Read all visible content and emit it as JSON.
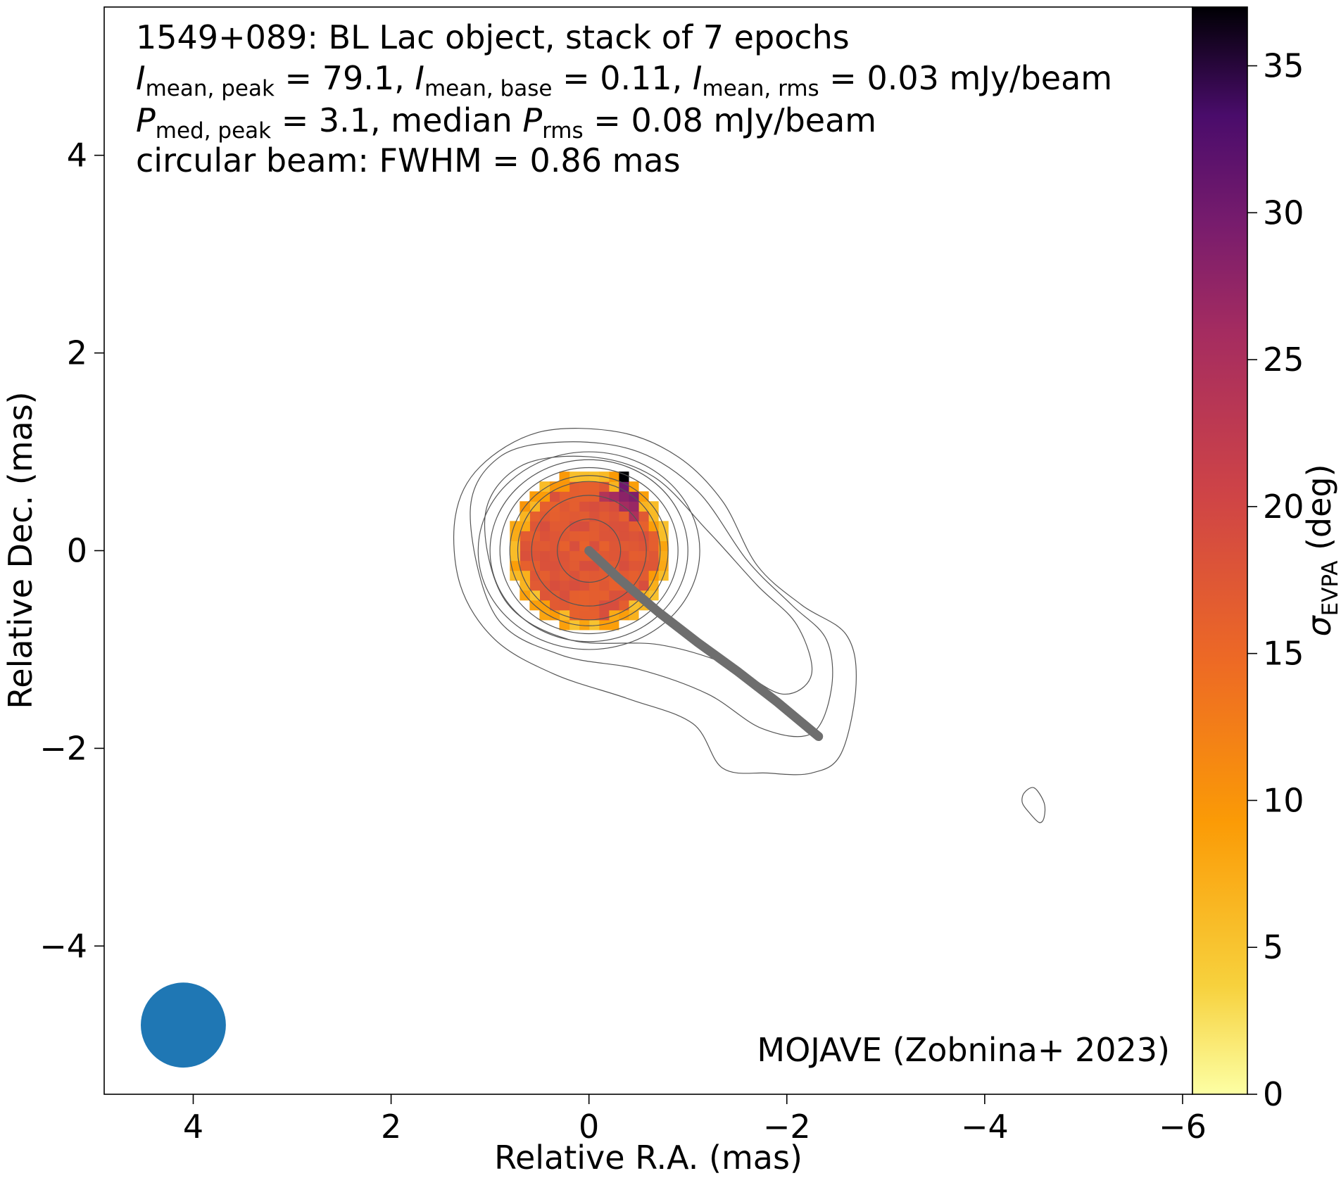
{
  "chart_data": {
    "type": "heatmap",
    "header_lines": {
      "line1": "1549+089: BL Lac object, stack of 7 epochs",
      "line2": {
        "i_sym": "I",
        "sub_peak": "mean, peak",
        "peak_val": " = 79.1, ",
        "sub_base": "mean, base",
        "base_val": " = 0.11, ",
        "sub_rms": "mean, rms",
        "rms_val": " = 0.03 mJy/beam"
      },
      "line3": {
        "p_sym": "P",
        "sub_med": "med, peak",
        "med_val": " = 3.1, median ",
        "sub_prms": "rms",
        "prms_val": " = 0.08 mJy/beam"
      },
      "line4": "circular beam: FWHM = 0.86 mas"
    },
    "credit": "MOJAVE (Zobnina+ 2023)",
    "xlabel": "Relative R.A. (mas)",
    "ylabel": "Relative Dec. (mas)",
    "xlim": [
      4.9,
      -6.1
    ],
    "ylim": [
      -5.5,
      5.5
    ],
    "xticks": [
      4,
      2,
      0,
      -2,
      -4,
      -6
    ],
    "yticks": [
      4,
      2,
      0,
      -2,
      -4
    ],
    "colorbar": {
      "label_sym": "σ",
      "label_sub": "EVPA",
      "label_unit": " (deg)",
      "range": [
        0,
        37
      ],
      "ticks": [
        0,
        5,
        10,
        15,
        20,
        25,
        30,
        35
      ],
      "colormap": "inferno_r"
    },
    "beam": {
      "x": 4.1,
      "y": -4.8,
      "fwhm": 0.86,
      "color": "#1f77b4"
    },
    "jet_ridge": {
      "color": "#6e6e6e",
      "points": [
        [
          0,
          0
        ],
        [
          -0.3,
          -0.28
        ],
        [
          -0.7,
          -0.62
        ],
        [
          -1.1,
          -0.93
        ],
        [
          -1.5,
          -1.22
        ],
        [
          -1.9,
          -1.53
        ],
        [
          -2.32,
          -1.88
        ]
      ]
    },
    "polarization_region": {
      "center": [
        0,
        0
      ],
      "radius": 0.82,
      "pixel_size": 0.1,
      "core_sigma_deg": 17.5,
      "edge_sigma_deg": 5,
      "notable_pixels": [
        {
          "x": -0.35,
          "y": 0.75,
          "sigma": 37
        },
        {
          "x": -0.35,
          "y": 0.65,
          "sigma": 30
        },
        {
          "x": -0.45,
          "y": 0.55,
          "sigma": 29
        },
        {
          "x": -0.35,
          "y": 0.55,
          "sigma": 28
        },
        {
          "x": -0.25,
          "y": 0.55,
          "sigma": 26
        },
        {
          "x": -0.45,
          "y": 0.45,
          "sigma": 27
        },
        {
          "x": -0.35,
          "y": 0.45,
          "sigma": 26
        },
        {
          "x": -0.45,
          "y": 0.35,
          "sigma": 25
        },
        {
          "x": -0.15,
          "y": 0.55,
          "sigma": 24
        }
      ]
    },
    "contours": {
      "main": [
        {
          "rx": 0.32,
          "ry": 0.32
        },
        {
          "rx": 0.58,
          "ry": 0.56
        },
        {
          "rx": 0.72,
          "ry": 0.7
        },
        {
          "rx": 0.8,
          "ry": 0.76
        },
        {
          "rx": 0.9,
          "ry": 0.84
        },
        {
          "rx": 1.0,
          "ry": 0.92
        },
        {
          "rx": 1.12,
          "ry": 1.0
        }
      ],
      "extended": [
        [
          [
            1.35,
            0.35
          ],
          [
            1.1,
            0.85
          ],
          [
            0.5,
            1.2
          ],
          [
            -0.3,
            1.2
          ],
          [
            -0.9,
            0.95
          ],
          [
            -1.35,
            0.5
          ],
          [
            -1.7,
            -0.15
          ],
          [
            -2.15,
            -0.55
          ],
          [
            -2.6,
            -0.85
          ],
          [
            -2.7,
            -1.35
          ],
          [
            -2.55,
            -2.05
          ],
          [
            -2.25,
            -2.25
          ],
          [
            -1.8,
            -2.25
          ],
          [
            -1.35,
            -2.2
          ],
          [
            -1.05,
            -1.75
          ],
          [
            -0.4,
            -1.5
          ],
          [
            0.35,
            -1.25
          ],
          [
            0.95,
            -0.9
          ],
          [
            1.3,
            -0.35
          ]
        ],
        [
          [
            1.2,
            0.4
          ],
          [
            0.9,
            0.95
          ],
          [
            0.25,
            1.1
          ],
          [
            -0.5,
            1.0
          ],
          [
            -1.1,
            0.6
          ],
          [
            -1.6,
            -0.1
          ],
          [
            -2.05,
            -0.55
          ],
          [
            -2.4,
            -0.9
          ],
          [
            -2.45,
            -1.4
          ],
          [
            -2.25,
            -1.85
          ],
          [
            -1.75,
            -1.8
          ],
          [
            -1.2,
            -1.45
          ],
          [
            -0.5,
            -1.2
          ],
          [
            0.3,
            -1.05
          ],
          [
            0.95,
            -0.65
          ]
        ],
        [
          [
            1.05,
            0.35
          ],
          [
            0.7,
            0.85
          ],
          [
            0.0,
            0.95
          ],
          [
            -0.65,
            0.75
          ],
          [
            -1.2,
            0.2
          ],
          [
            -1.7,
            -0.35
          ],
          [
            -2.1,
            -0.75
          ],
          [
            -2.25,
            -1.25
          ],
          [
            -1.95,
            -1.45
          ],
          [
            -1.4,
            -1.15
          ],
          [
            -0.7,
            -0.95
          ],
          [
            0.2,
            -0.9
          ],
          [
            0.85,
            -0.5
          ]
        ]
      ],
      "isolated": [
        [
          -4.4,
          -2.45
        ],
        [
          -4.5,
          -2.4
        ],
        [
          -4.6,
          -2.55
        ],
        [
          -4.6,
          -2.7
        ],
        [
          -4.55,
          -2.75
        ],
        [
          -4.45,
          -2.65
        ],
        [
          -4.38,
          -2.55
        ]
      ]
    }
  }
}
